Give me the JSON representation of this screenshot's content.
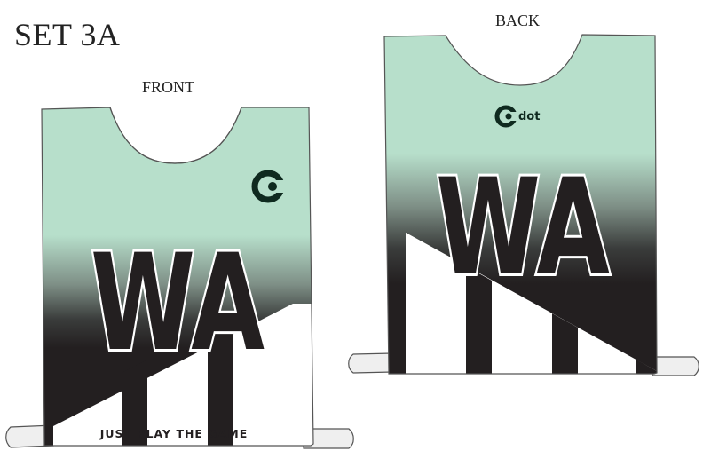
{
  "set_title": "SET 3A",
  "front": {
    "label": "FRONT",
    "position": "WA",
    "logo_icon": "cdot-c-logo-icon",
    "tagline": "JUST PLAY THE GAME"
  },
  "back": {
    "label": "BACK",
    "position": "WA",
    "logo_icon": "cdot-c-logo-icon",
    "logo_text": "dot"
  },
  "colors": {
    "mint": "#b7dfcb",
    "black": "#231f20",
    "white": "#ffffff",
    "neck_grey": "#6d6d6f"
  }
}
